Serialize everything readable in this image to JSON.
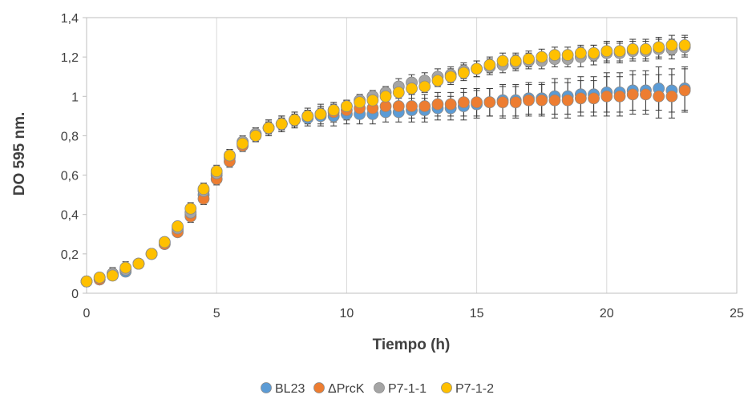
{
  "chart_data": {
    "type": "scatter",
    "title": "",
    "xlabel": "Tiempo (h)",
    "ylabel": "DO 595 nm.",
    "xlim": [
      0,
      25
    ],
    "ylim": [
      0,
      1.4
    ],
    "x_ticks": [
      0,
      5,
      10,
      15,
      20,
      25
    ],
    "x_tick_labels": [
      "0",
      "5",
      "10",
      "15",
      "20",
      "25"
    ],
    "y_ticks": [
      0,
      0.2,
      0.4,
      0.6,
      0.8,
      1,
      1.2,
      1.4
    ],
    "y_tick_labels": [
      "0",
      "0,2",
      "0,4",
      "0,6",
      "0,8",
      "1",
      "1,2",
      "1,4"
    ],
    "grid": "vertical",
    "legend_position": "bottom",
    "error_bars": true,
    "x": [
      0,
      0.5,
      1,
      1.5,
      2,
      2.5,
      3,
      3.5,
      4,
      4.5,
      5,
      5.5,
      6,
      6.5,
      7,
      7.5,
      8,
      8.5,
      9,
      9.5,
      10,
      10.5,
      11,
      11.5,
      12,
      12.5,
      13,
      13.5,
      14,
      14.5,
      15,
      15.5,
      16,
      16.5,
      17,
      17.5,
      18,
      18.5,
      19,
      19.5,
      20,
      20.5,
      21,
      21.5,
      22,
      22.5,
      23
    ],
    "series": [
      {
        "name": "BL23",
        "color": "#5B9BD5",
        "values": [
          0.06,
          0.07,
          0.09,
          0.11,
          0.15,
          0.2,
          0.25,
          0.32,
          0.4,
          0.5,
          0.6,
          0.69,
          0.76,
          0.81,
          0.84,
          0.86,
          0.88,
          0.89,
          0.9,
          0.9,
          0.91,
          0.91,
          0.91,
          0.92,
          0.92,
          0.93,
          0.93,
          0.94,
          0.94,
          0.95,
          0.96,
          0.97,
          0.98,
          0.98,
          0.99,
          0.99,
          1.0,
          1.0,
          1.01,
          1.01,
          1.02,
          1.02,
          1.03,
          1.03,
          1.04,
          1.03,
          1.04
        ],
        "error": [
          0.01,
          0.02,
          0.02,
          0.02,
          0.02,
          0.02,
          0.02,
          0.02,
          0.03,
          0.03,
          0.03,
          0.03,
          0.03,
          0.03,
          0.04,
          0.04,
          0.04,
          0.04,
          0.05,
          0.05,
          0.05,
          0.05,
          0.05,
          0.05,
          0.05,
          0.06,
          0.06,
          0.06,
          0.06,
          0.07,
          0.07,
          0.07,
          0.08,
          0.08,
          0.08,
          0.08,
          0.09,
          0.09,
          0.09,
          0.09,
          0.1,
          0.1,
          0.1,
          0.1,
          0.11,
          0.11,
          0.11
        ]
      },
      {
        "name": "ΔPrcK",
        "color": "#ED7D31",
        "values": [
          0.06,
          0.07,
          0.1,
          0.12,
          0.15,
          0.2,
          0.25,
          0.31,
          0.39,
          0.48,
          0.58,
          0.67,
          0.75,
          0.8,
          0.84,
          0.86,
          0.88,
          0.9,
          0.91,
          0.92,
          0.93,
          0.94,
          0.94,
          0.95,
          0.95,
          0.95,
          0.95,
          0.96,
          0.96,
          0.97,
          0.97,
          0.97,
          0.97,
          0.97,
          0.98,
          0.98,
          0.98,
          0.98,
          0.99,
          0.99,
          1.0,
          1.0,
          1.01,
          1.01,
          1.0,
          1.0,
          1.03
        ],
        "error": [
          0.01,
          0.02,
          0.03,
          0.03,
          0.02,
          0.02,
          0.02,
          0.02,
          0.03,
          0.03,
          0.03,
          0.03,
          0.03,
          0.03,
          0.04,
          0.04,
          0.04,
          0.04,
          0.05,
          0.05,
          0.05,
          0.05,
          0.05,
          0.05,
          0.05,
          0.06,
          0.06,
          0.06,
          0.06,
          0.07,
          0.07,
          0.07,
          0.08,
          0.08,
          0.08,
          0.08,
          0.09,
          0.09,
          0.09,
          0.09,
          0.1,
          0.1,
          0.1,
          0.1,
          0.11,
          0.11,
          0.11
        ]
      },
      {
        "name": "P7-1-1",
        "color": "#A5A5A5",
        "values": [
          0.06,
          0.08,
          0.1,
          0.12,
          0.15,
          0.2,
          0.26,
          0.33,
          0.41,
          0.52,
          0.61,
          0.7,
          0.77,
          0.81,
          0.84,
          0.86,
          0.88,
          0.9,
          0.91,
          0.93,
          0.95,
          0.98,
          1.0,
          1.02,
          1.05,
          1.07,
          1.08,
          1.1,
          1.11,
          1.13,
          1.14,
          1.15,
          1.16,
          1.17,
          1.18,
          1.18,
          1.19,
          1.19,
          1.2,
          1.21,
          1.22,
          1.22,
          1.23,
          1.23,
          1.24,
          1.24,
          1.25
        ],
        "error": [
          0.01,
          0.02,
          0.03,
          0.03,
          0.02,
          0.02,
          0.02,
          0.02,
          0.03,
          0.03,
          0.03,
          0.03,
          0.03,
          0.03,
          0.03,
          0.03,
          0.03,
          0.03,
          0.03,
          0.03,
          0.03,
          0.03,
          0.03,
          0.03,
          0.04,
          0.04,
          0.04,
          0.04,
          0.04,
          0.04,
          0.04,
          0.04,
          0.04,
          0.04,
          0.04,
          0.04,
          0.04,
          0.04,
          0.05,
          0.05,
          0.05,
          0.05,
          0.05,
          0.05,
          0.05,
          0.05,
          0.05
        ]
      },
      {
        "name": "P7-1-2",
        "color": "#FFC000",
        "values": [
          0.06,
          0.08,
          0.09,
          0.13,
          0.15,
          0.2,
          0.26,
          0.34,
          0.43,
          0.53,
          0.62,
          0.7,
          0.76,
          0.8,
          0.84,
          0.86,
          0.88,
          0.9,
          0.91,
          0.93,
          0.95,
          0.97,
          0.98,
          1.0,
          1.02,
          1.04,
          1.05,
          1.08,
          1.1,
          1.12,
          1.14,
          1.16,
          1.18,
          1.18,
          1.19,
          1.2,
          1.21,
          1.21,
          1.22,
          1.22,
          1.23,
          1.23,
          1.24,
          1.24,
          1.25,
          1.26,
          1.26
        ],
        "error": [
          0.01,
          0.02,
          0.02,
          0.03,
          0.02,
          0.02,
          0.02,
          0.02,
          0.03,
          0.03,
          0.03,
          0.03,
          0.03,
          0.03,
          0.03,
          0.03,
          0.03,
          0.03,
          0.03,
          0.03,
          0.03,
          0.03,
          0.03,
          0.03,
          0.03,
          0.03,
          0.03,
          0.03,
          0.04,
          0.04,
          0.04,
          0.04,
          0.04,
          0.04,
          0.04,
          0.04,
          0.04,
          0.04,
          0.04,
          0.04,
          0.05,
          0.05,
          0.05,
          0.05,
          0.05,
          0.05,
          0.05
        ]
      }
    ]
  }
}
